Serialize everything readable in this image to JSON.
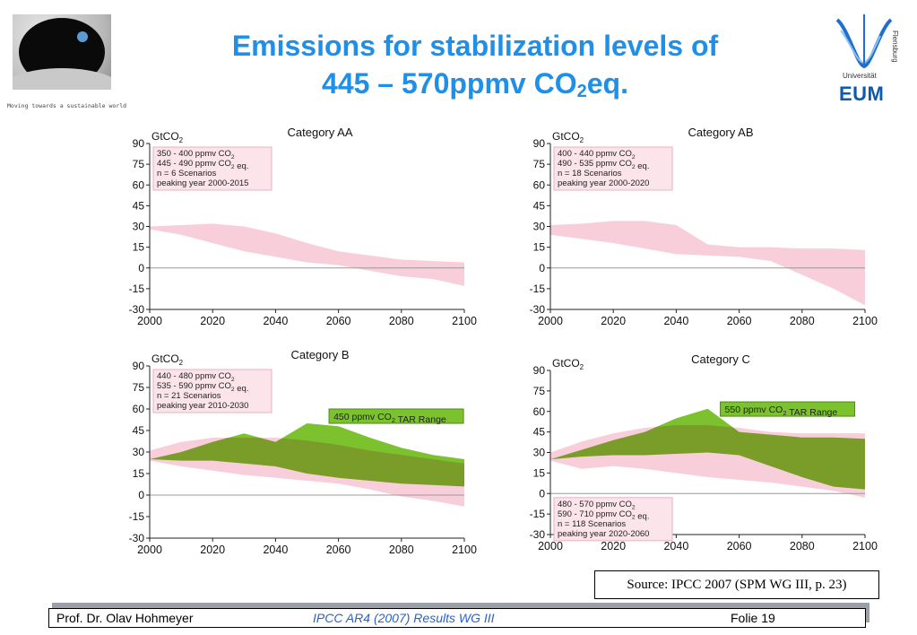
{
  "header": {
    "title_line1": "Emissions for stabilization levels of",
    "title_line2_pre": "445 – 570ppmv CO",
    "title_line2_sub": "2",
    "title_line2_post": "eq.",
    "tagline": "Moving towards a sustainable world"
  },
  "logo_right": {
    "vertical_text": "Flensburg",
    "university": "Universität",
    "eum": "EUM"
  },
  "source": "Source: IPCC 2007 (SPM WG III, p. 23)",
  "footer": {
    "author": "Prof. Dr. Olav Hohmeyer",
    "center": "IPCC AR4 (2007) Results WG III",
    "slide": "Folie 19"
  },
  "colors": {
    "title": "#1f8fe8",
    "pink_band": "#f7c5d3",
    "green_band": "#7cc22e",
    "overlap": "#a39a6d",
    "annotation_box": "#fbe4ea",
    "eum": "#0a5bb0"
  },
  "chart_data": [
    {
      "type": "area",
      "title": "Category AA",
      "ylabel": "GtCO2",
      "xlim": [
        2000,
        2100
      ],
      "ylim": [
        -30,
        90
      ],
      "yticks": [
        90,
        75,
        60,
        45,
        30,
        15,
        0,
        -15,
        -30
      ],
      "xticks": [
        2000,
        2020,
        2040,
        2060,
        2080,
        2100
      ],
      "annotation": [
        "350 - 400 ppmv CO2",
        "445 - 490 ppmv CO2 eq.",
        "n = 6 Scenarios",
        "peaking year 2000-2015"
      ],
      "series": [
        {
          "role": "pink-range",
          "x": [
            2000,
            2010,
            2020,
            2030,
            2040,
            2050,
            2060,
            2070,
            2080,
            2090,
            2100
          ],
          "upper": [
            30,
            31,
            32,
            30,
            25,
            18,
            12,
            9,
            6,
            5,
            4
          ],
          "lower": [
            28,
            24,
            18,
            12,
            8,
            4,
            2,
            -2,
            -6,
            -8,
            -13
          ]
        }
      ]
    },
    {
      "type": "area",
      "title": "Category AB",
      "ylabel": "GtCO2",
      "xlim": [
        2000,
        2100
      ],
      "ylim": [
        -30,
        90
      ],
      "yticks": [
        90,
        75,
        60,
        45,
        30,
        15,
        0,
        -15,
        -30
      ],
      "xticks": [
        2000,
        2020,
        2040,
        2060,
        2080,
        2100
      ],
      "annotation": [
        "400 - 440 ppmv CO2",
        "490 - 535 ppmv CO2 eq.",
        "n = 18 Scenarios",
        "peaking year 2000-2020"
      ],
      "series": [
        {
          "role": "pink-range",
          "x": [
            2000,
            2010,
            2020,
            2030,
            2040,
            2050,
            2060,
            2070,
            2080,
            2090,
            2100
          ],
          "upper": [
            31,
            32,
            34,
            34,
            31,
            17,
            15,
            15,
            14,
            14,
            13
          ],
          "lower": [
            24,
            21,
            18,
            14,
            10,
            9,
            8,
            5,
            -5,
            -15,
            -27
          ]
        }
      ]
    },
    {
      "type": "area",
      "title": "Category B",
      "ylabel": "GtCO2",
      "xlim": [
        2000,
        2100
      ],
      "ylim": [
        -30,
        90
      ],
      "yticks": [
        90,
        75,
        60,
        45,
        30,
        15,
        0,
        -15,
        -30
      ],
      "xticks": [
        2000,
        2020,
        2040,
        2060,
        2080,
        2100
      ],
      "annotation": [
        "440 - 480 ppmv CO2",
        "535 - 590 ppmv CO2 eq.",
        "n = 21 Scenarios",
        "peaking year 2010-2030"
      ],
      "range_label": "450 ppmv CO2 TAR Range",
      "series": [
        {
          "role": "green-range",
          "x": [
            2000,
            2010,
            2020,
            2030,
            2040,
            2050,
            2060,
            2070,
            2080,
            2090,
            2100
          ],
          "upper": [
            25,
            30,
            37,
            43,
            37,
            50,
            48,
            40,
            33,
            28,
            25
          ],
          "lower": [
            25,
            24,
            24,
            22,
            20,
            15,
            12,
            10,
            8,
            7,
            6
          ]
        },
        {
          "role": "pink-range",
          "x": [
            2000,
            2010,
            2020,
            2030,
            2040,
            2050,
            2060,
            2070,
            2080,
            2090,
            2100
          ],
          "upper": [
            31,
            37,
            40,
            40,
            40,
            38,
            35,
            31,
            28,
            25,
            22
          ],
          "lower": [
            24,
            20,
            17,
            14,
            12,
            10,
            8,
            4,
            -1,
            -4,
            -8
          ]
        }
      ]
    },
    {
      "type": "area",
      "title": "Category C",
      "ylabel": "GtCO2",
      "xlim": [
        2000,
        2100
      ],
      "ylim": [
        -30,
        90
      ],
      "yticks": [
        90,
        75,
        60,
        45,
        30,
        15,
        0,
        -15,
        -30
      ],
      "xticks": [
        2000,
        2020,
        2040,
        2060,
        2080,
        2100
      ],
      "annotation": [
        "480 - 570 ppmv CO2",
        "590 - 710 ppmv CO2 eq.",
        "n = 118 Scenarios",
        "peaking year 2020-2060"
      ],
      "range_label": "550 ppmv CO2 TAR Range",
      "series": [
        {
          "role": "green-range",
          "x": [
            2000,
            2010,
            2020,
            2030,
            2040,
            2050,
            2060,
            2070,
            2080,
            2090,
            2100
          ],
          "upper": [
            25,
            32,
            39,
            45,
            55,
            62,
            45,
            43,
            41,
            41,
            40
          ],
          "lower": [
            25,
            27,
            28,
            28,
            29,
            30,
            28,
            20,
            12,
            5,
            3
          ]
        },
        {
          "role": "pink-range",
          "x": [
            2000,
            2010,
            2020,
            2030,
            2040,
            2050,
            2060,
            2070,
            2080,
            2090,
            2100
          ],
          "upper": [
            30,
            38,
            44,
            48,
            50,
            50,
            48,
            45,
            44,
            44,
            44
          ],
          "lower": [
            24,
            18,
            20,
            18,
            15,
            12,
            10,
            8,
            5,
            2,
            -3
          ]
        }
      ]
    }
  ]
}
